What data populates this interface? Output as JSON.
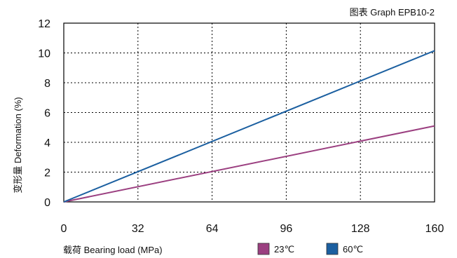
{
  "chart_data": {
    "type": "line",
    "title": "图表 Graph EPB10-2",
    "xlabel": "载荷 Bearing load (MPa)",
    "ylabel": "变形量 Deformation (%)",
    "xlim": [
      0,
      160
    ],
    "ylim": [
      0,
      12
    ],
    "xticks": [
      0,
      32,
      64,
      96,
      128,
      160
    ],
    "yticks": [
      0,
      2,
      4,
      6,
      8,
      10,
      12
    ],
    "grid": "dotted",
    "legend_position": "bottom",
    "series": [
      {
        "name": "23℃",
        "color": "#9b3f80",
        "x": [
          0,
          160
        ],
        "y": [
          0,
          5.1
        ]
      },
      {
        "name": "60℃",
        "color": "#1b5fa0",
        "x": [
          0,
          160
        ],
        "y": [
          0,
          10.15
        ]
      }
    ]
  }
}
